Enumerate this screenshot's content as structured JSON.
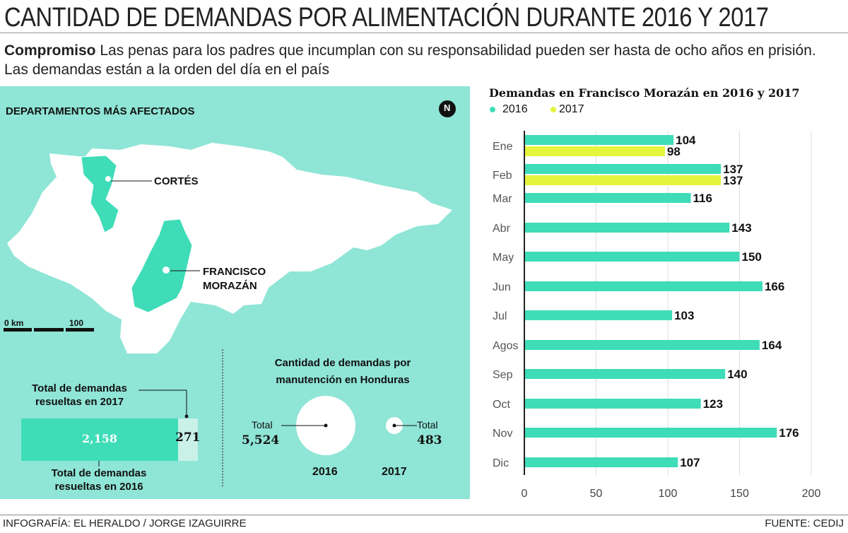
{
  "title": "CANTIDAD DE DEMANDAS POR ALIMENTACIÓN DURANTE 2016 Y 2017",
  "lead": {
    "bold": "Compromiso",
    "text": " Las penas para los padres que incumplan con su responsabilidad pueden ser hasta de ocho años en prisión. Las demandas están a la orden del día en el país"
  },
  "map": {
    "heading": "DEPARTAMENTOS MÁS AFECTADOS",
    "north": "N",
    "labels": [
      "CORTÉS",
      "FRANCISCO",
      "MORAZÁN"
    ],
    "scale": {
      "start": "0 km",
      "end": "100"
    }
  },
  "resolved": {
    "label_2017": [
      "Total de demandas",
      "resueltas en 2017"
    ],
    "label_2016": [
      "Total de demandas",
      "resueltas en 2016"
    ],
    "value_2016": "2,158",
    "value_2017": "271",
    "share_2016": 0.888
  },
  "honduras": {
    "title": [
      "Cantidad de demandas por",
      "manutención en Honduras"
    ],
    "total_label": "Total",
    "y2016": {
      "year": "2016",
      "value": "5,524",
      "num": 5524
    },
    "y2017": {
      "year": "2017",
      "value": "483",
      "num": 483
    }
  },
  "colors": {
    "c2016": "#3fdcb8",
    "c2017": "#e5f43c",
    "panel": "#8fe5d6"
  },
  "chart_data": {
    "type": "bar",
    "orientation": "horizontal",
    "title": "Demandas en Francisco Morazán en 2016 y 2017",
    "categories": [
      "Ene",
      "Feb",
      "Mar",
      "Abr",
      "May",
      "Jun",
      "Jul",
      "Agos",
      "Sep",
      "Oct",
      "Nov",
      "Dic"
    ],
    "series": [
      {
        "name": "2016",
        "values": [
          104,
          137,
          116,
          143,
          150,
          166,
          103,
          164,
          140,
          123,
          176,
          107
        ]
      },
      {
        "name": "2017",
        "values": [
          98,
          137,
          null,
          null,
          null,
          null,
          null,
          null,
          null,
          null,
          null,
          null
        ]
      }
    ],
    "xlim": [
      0,
      200
    ],
    "xticks": [
      "0",
      "50",
      "100",
      "150",
      "200"
    ],
    "grid": true,
    "legend": "top-left"
  },
  "footer": {
    "left": "INFOGRAFÍA: EL HERALDO / JORGE IZAGUIRRE",
    "right": "FUENTE: CEDIJ"
  }
}
